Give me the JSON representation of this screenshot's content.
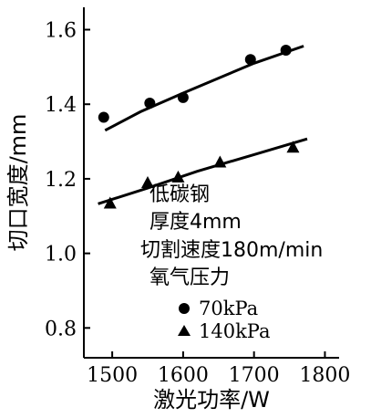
{
  "chart_data": {
    "type": "scatter",
    "xlabel": "激光功率/W",
    "ylabel": "切口宽度/mm",
    "xlim": [
      1460,
      1820
    ],
    "ylim": [
      0.72,
      1.66
    ],
    "xticks": [
      1500,
      1600,
      1700,
      1800
    ],
    "xtick_labels": [
      "1500",
      "1600",
      "1700",
      "1800"
    ],
    "yticks": [
      0.8,
      1.0,
      1.2,
      1.4,
      1.6
    ],
    "ytick_labels": [
      "0.8",
      "1.0",
      "1.2",
      "1.4",
      "1.6"
    ],
    "grid": false,
    "annotations": [
      "低碳钢",
      "厚度4mm",
      "切割速度180m/min",
      "氧气压力"
    ],
    "series": [
      {
        "name": "70kPa",
        "marker": "circle",
        "points": [
          [
            1488,
            1.365
          ],
          [
            1553,
            1.403
          ],
          [
            1600,
            1.418
          ],
          [
            1695,
            1.52
          ],
          [
            1745,
            1.545
          ]
        ],
        "fit_line": [
          [
            1490,
            1.33
          ],
          [
            1540,
            1.38
          ],
          [
            1600,
            1.43
          ],
          [
            1650,
            1.47
          ],
          [
            1700,
            1.51
          ],
          [
            1770,
            1.556
          ]
        ]
      },
      {
        "name": "140kPa",
        "marker": "triangle",
        "points": [
          [
            1497,
            1.135
          ],
          [
            1550,
            1.19
          ],
          [
            1593,
            1.205
          ],
          [
            1652,
            1.245
          ],
          [
            1755,
            1.285
          ]
        ],
        "fit_line": [
          [
            1480,
            1.133
          ],
          [
            1550,
            1.175
          ],
          [
            1620,
            1.22
          ],
          [
            1700,
            1.265
          ],
          [
            1775,
            1.307
          ]
        ]
      }
    ],
    "legend": [
      {
        "label": "70kPa",
        "marker": "circle"
      },
      {
        "label": "140kPa",
        "marker": "triangle"
      }
    ]
  }
}
